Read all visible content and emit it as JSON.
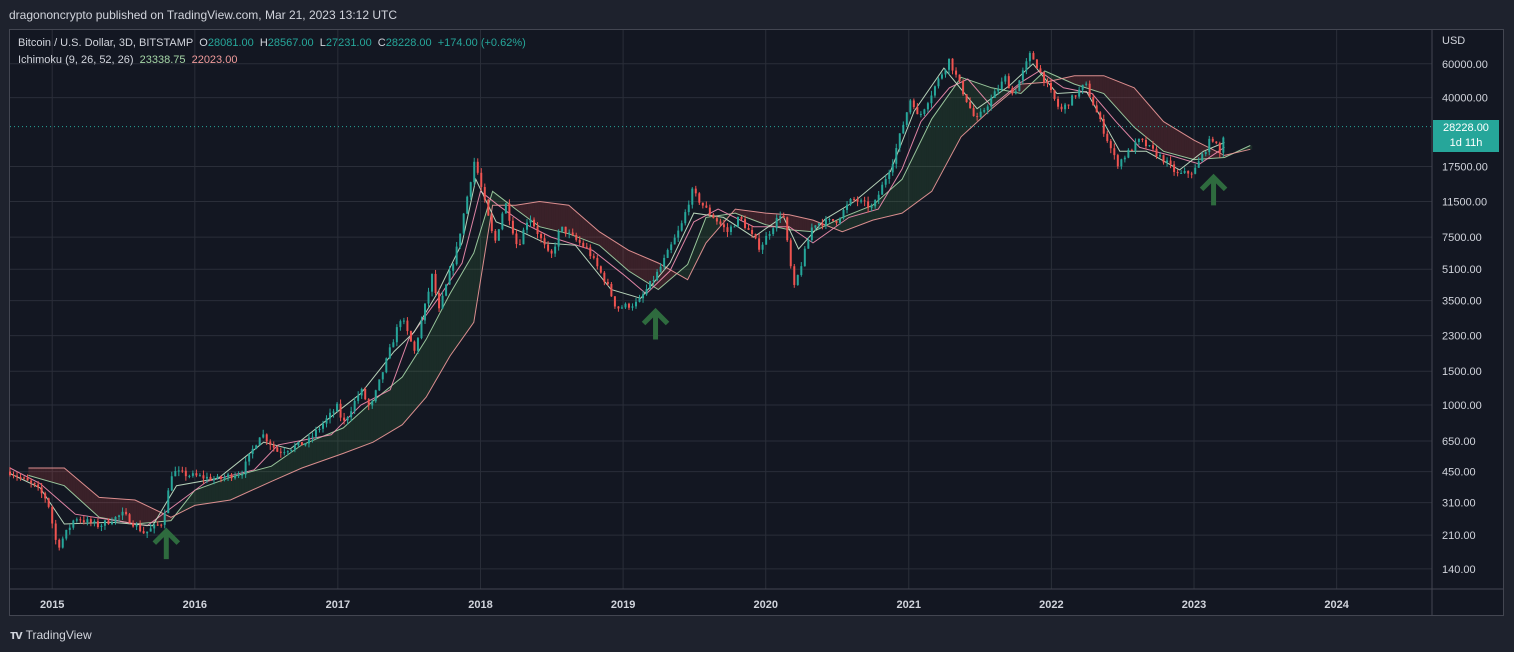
{
  "header": {
    "published": "dragononcrypto published on TradingView.com, Mar 21, 2023 13:12 UTC"
  },
  "legend": {
    "symbol": "Bitcoin / U.S. Dollar, 3D, BITSTAMP",
    "o_label": "O",
    "o": "28081.00",
    "h_label": "H",
    "h": "28567.00",
    "l_label": "L",
    "l": "27231.00",
    "c_label": "C",
    "c": "28228.00",
    "change": "+174.00 (+0.62%)",
    "indicator": "Ichimoku (9, 26, 52, 26)",
    "ind_a": "23338.75",
    "ind_b": "22023.00"
  },
  "price_badge": {
    "price": "28228.00",
    "countdown": "1d 11h"
  },
  "footer": {
    "brand": "TradingView"
  },
  "colors": {
    "up": "#26a69a",
    "down": "#ef5350",
    "span_a": "#a5d6a7",
    "span_b": "#ef9a9a",
    "arrow": "#2e6b3e"
  },
  "chart_data": {
    "type": "candlestick",
    "currency": "USD",
    "scale": "log",
    "ylim": [
      110,
      90000
    ],
    "xlim": [
      "2014-09-15",
      "2024-09-01"
    ],
    "x_ticks": [
      "2015",
      "2016",
      "2017",
      "2018",
      "2019",
      "2020",
      "2021",
      "2022",
      "2023",
      "2024"
    ],
    "y_ticks": [
      60000,
      40000,
      28228,
      17500,
      11500,
      7500,
      5100,
      3500,
      2300,
      1500,
      1000,
      650,
      450,
      310,
      210,
      140
    ],
    "y_tick_labels": [
      "60000.00",
      "40000.00",
      "",
      "17500.00",
      "11500.00",
      "7500.00",
      "5100.00",
      "3500.00",
      "2300.00",
      "1500.00",
      "1000.00",
      "650.00",
      "450.00",
      "310.00",
      "210.00",
      "140.00"
    ],
    "last_price": 28228,
    "price_path": [
      [
        "2014-09-15",
        450
      ],
      [
        "2014-11-15",
        380
      ],
      [
        "2014-12-20",
        320
      ],
      [
        "2015-01-14",
        180
      ],
      [
        "2015-03-01",
        260
      ],
      [
        "2015-05-01",
        235
      ],
      [
        "2015-07-01",
        270
      ],
      [
        "2015-08-25",
        215
      ],
      [
        "2015-10-10",
        245
      ],
      [
        "2015-11-04",
        450
      ],
      [
        "2015-12-20",
        430
      ],
      [
        "2016-03-01",
        410
      ],
      [
        "2016-05-01",
        450
      ],
      [
        "2016-06-18",
        720
      ],
      [
        "2016-08-01",
        570
      ],
      [
        "2016-10-15",
        640
      ],
      [
        "2017-01-03",
        1000
      ],
      [
        "2017-01-12",
        780
      ],
      [
        "2017-03-01",
        1200
      ],
      [
        "2017-03-25",
        950
      ],
      [
        "2017-05-20",
        2100
      ],
      [
        "2017-06-12",
        2900
      ],
      [
        "2017-07-16",
        1900
      ],
      [
        "2017-09-01",
        4900
      ],
      [
        "2017-09-15",
        3000
      ],
      [
        "2017-11-01",
        6500
      ],
      [
        "2017-12-17",
        19000
      ],
      [
        "2018-02-06",
        6900
      ],
      [
        "2018-03-05",
        11500
      ],
      [
        "2018-04-06",
        6600
      ],
      [
        "2018-05-05",
        9800
      ],
      [
        "2018-06-29",
        5800
      ],
      [
        "2018-07-25",
        8400
      ],
      [
        "2018-10-01",
        6500
      ],
      [
        "2018-11-20",
        4300
      ],
      [
        "2018-12-15",
        3200
      ],
      [
        "2019-02-08",
        3400
      ],
      [
        "2019-04-02",
        5000
      ],
      [
        "2019-05-30",
        8600
      ],
      [
        "2019-06-26",
        13000
      ],
      [
        "2019-08-01",
        10500
      ],
      [
        "2019-09-25",
        8000
      ],
      [
        "2019-10-26",
        9500
      ],
      [
        "2019-12-17",
        6600
      ],
      [
        "2020-02-13",
        10400
      ],
      [
        "2020-03-13",
        4000
      ],
      [
        "2020-05-01",
        8800
      ],
      [
        "2020-07-01",
        9200
      ],
      [
        "2020-08-10",
        11900
      ],
      [
        "2020-10-01",
        10600
      ],
      [
        "2020-11-20",
        18500
      ],
      [
        "2021-01-08",
        41000
      ],
      [
        "2021-01-25",
        31000
      ],
      [
        "2021-04-14",
        63000
      ],
      [
        "2021-06-22",
        30000
      ],
      [
        "2021-09-06",
        51000
      ],
      [
        "2021-09-25",
        41000
      ],
      [
        "2021-11-09",
        68000
      ],
      [
        "2022-01-24",
        34000
      ],
      [
        "2022-03-29",
        47000
      ],
      [
        "2022-06-18",
        18000
      ],
      [
        "2022-08-15",
        24000
      ],
      [
        "2022-10-15",
        19000
      ],
      [
        "2022-11-21",
        15800
      ],
      [
        "2023-01-01",
        16500
      ],
      [
        "2023-02-16",
        25000
      ],
      [
        "2023-03-10",
        20000
      ],
      [
        "2023-03-20",
        28228
      ]
    ],
    "kijun": [
      [
        "2014-09-15",
        470
      ],
      [
        "2014-12-01",
        390
      ],
      [
        "2015-03-01",
        270
      ],
      [
        "2015-09-01",
        235
      ],
      [
        "2015-11-20",
        310
      ],
      [
        "2016-02-01",
        400
      ],
      [
        "2016-06-01",
        460
      ],
      [
        "2016-08-01",
        620
      ],
      [
        "2016-12-15",
        700
      ],
      [
        "2017-03-01",
        1000
      ],
      [
        "2017-05-15",
        1200
      ],
      [
        "2017-07-01",
        2200
      ],
      [
        "2017-09-15",
        3600
      ],
      [
        "2017-11-15",
        5500
      ],
      [
        "2018-01-01",
        13000
      ],
      [
        "2018-02-15",
        11000
      ],
      [
        "2018-04-15",
        9000
      ],
      [
        "2018-07-01",
        7500
      ],
      [
        "2018-10-15",
        6400
      ],
      [
        "2019-01-01",
        4800
      ],
      [
        "2019-03-01",
        3800
      ],
      [
        "2019-05-01",
        5000
      ],
      [
        "2019-07-01",
        9000
      ],
      [
        "2019-09-01",
        10500
      ],
      [
        "2019-12-01",
        8500
      ],
      [
        "2020-03-01",
        8500
      ],
      [
        "2020-05-01",
        7000
      ],
      [
        "2020-08-01",
        9500
      ],
      [
        "2020-10-15",
        10500
      ],
      [
        "2020-12-15",
        17000
      ],
      [
        "2021-02-01",
        30000
      ],
      [
        "2021-04-15",
        45000
      ],
      [
        "2021-06-01",
        50000
      ],
      [
        "2021-08-01",
        36000
      ],
      [
        "2021-10-15",
        48000
      ],
      [
        "2021-12-01",
        55000
      ],
      [
        "2022-02-01",
        45000
      ],
      [
        "2022-04-15",
        42000
      ],
      [
        "2022-06-15",
        30000
      ],
      [
        "2022-08-15",
        22000
      ],
      [
        "2022-11-01",
        20000
      ],
      [
        "2023-01-15",
        18000
      ],
      [
        "2023-03-20",
        22023
      ]
    ],
    "tenkan": [
      [
        "2014-09-15",
        440
      ],
      [
        "2014-12-01",
        370
      ],
      [
        "2015-02-01",
        240
      ],
      [
        "2015-06-01",
        245
      ],
      [
        "2015-09-15",
        235
      ],
      [
        "2015-11-15",
        380
      ],
      [
        "2016-03-01",
        415
      ],
      [
        "2016-06-25",
        640
      ],
      [
        "2016-09-01",
        590
      ],
      [
        "2017-01-05",
        940
      ],
      [
        "2017-03-01",
        1150
      ],
      [
        "2017-05-25",
        1900
      ],
      [
        "2017-07-15",
        2400
      ],
      [
        "2017-09-15",
        3900
      ],
      [
        "2017-11-15",
        7000
      ],
      [
        "2017-12-20",
        15000
      ],
      [
        "2018-02-10",
        9000
      ],
      [
        "2018-04-15",
        8000
      ],
      [
        "2018-06-15",
        7000
      ],
      [
        "2018-09-01",
        6800
      ],
      [
        "2018-12-01",
        4000
      ],
      [
        "2019-02-15",
        3600
      ],
      [
        "2019-05-01",
        5500
      ],
      [
        "2019-07-01",
        10000
      ],
      [
        "2019-09-15",
        9500
      ],
      [
        "2019-12-01",
        7500
      ],
      [
        "2020-02-15",
        9600
      ],
      [
        "2020-03-25",
        6500
      ],
      [
        "2020-06-01",
        9300
      ],
      [
        "2020-08-15",
        11500
      ],
      [
        "2020-11-15",
        16500
      ],
      [
        "2021-01-15",
        34000
      ],
      [
        "2021-04-01",
        57000
      ],
      [
        "2021-06-25",
        35000
      ],
      [
        "2021-09-15",
        46000
      ],
      [
        "2021-11-15",
        60000
      ],
      [
        "2022-01-15",
        42000
      ],
      [
        "2022-04-01",
        43000
      ],
      [
        "2022-06-25",
        21000
      ],
      [
        "2022-09-01",
        21000
      ],
      [
        "2022-11-25",
        16800
      ],
      [
        "2023-01-25",
        21000
      ],
      [
        "2023-03-20",
        23338.75
      ]
    ],
    "span_a": [
      [
        "2014-11-01",
        430
      ],
      [
        "2015-02-01",
        380
      ],
      [
        "2015-05-01",
        260
      ],
      [
        "2015-08-01",
        240
      ],
      [
        "2015-11-01",
        250
      ],
      [
        "2016-01-01",
        360
      ],
      [
        "2016-04-01",
        420
      ],
      [
        "2016-07-15",
        480
      ],
      [
        "2016-10-01",
        620
      ],
      [
        "2017-01-15",
        760
      ],
      [
        "2017-04-01",
        1050
      ],
      [
        "2017-06-15",
        1400
      ],
      [
        "2017-08-15",
        2200
      ],
      [
        "2017-10-15",
        3800
      ],
      [
        "2017-12-15",
        6200
      ],
      [
        "2018-02-01",
        13000
      ],
      [
        "2018-04-01",
        10500
      ],
      [
        "2018-06-01",
        8500
      ],
      [
        "2018-08-15",
        7800
      ],
      [
        "2018-11-01",
        6800
      ],
      [
        "2019-01-15",
        5000
      ],
      [
        "2019-04-01",
        4000
      ],
      [
        "2019-06-15",
        5400
      ],
      [
        "2019-08-01",
        9500
      ],
      [
        "2019-10-15",
        10000
      ],
      [
        "2020-01-01",
        8700
      ],
      [
        "2020-03-01",
        8200
      ],
      [
        "2020-05-01",
        8000
      ],
      [
        "2020-07-15",
        9500
      ],
      [
        "2020-10-01",
        11000
      ],
      [
        "2020-12-15",
        15000
      ],
      [
        "2021-03-01",
        31000
      ],
      [
        "2021-05-15",
        51000
      ],
      [
        "2021-08-01",
        45000
      ],
      [
        "2021-10-15",
        42000
      ],
      [
        "2021-12-15",
        55000
      ],
      [
        "2022-03-01",
        47000
      ],
      [
        "2022-05-15",
        42000
      ],
      [
        "2022-08-01",
        28000
      ],
      [
        "2022-10-15",
        21000
      ],
      [
        "2023-01-01",
        19000
      ],
      [
        "2023-03-20",
        19500
      ],
      [
        "2023-05-25",
        22500
      ]
    ],
    "span_b": [
      [
        "2014-11-01",
        470
      ],
      [
        "2015-02-01",
        470
      ],
      [
        "2015-05-01",
        330
      ],
      [
        "2015-08-01",
        320
      ],
      [
        "2015-11-01",
        260
      ],
      [
        "2016-01-01",
        300
      ],
      [
        "2016-04-01",
        320
      ],
      [
        "2016-07-15",
        400
      ],
      [
        "2016-10-01",
        470
      ],
      [
        "2017-01-15",
        560
      ],
      [
        "2017-04-01",
        640
      ],
      [
        "2017-06-15",
        790
      ],
      [
        "2017-08-15",
        1100
      ],
      [
        "2017-10-15",
        1800
      ],
      [
        "2017-12-15",
        2700
      ],
      [
        "2018-02-01",
        11000
      ],
      [
        "2018-04-01",
        11000
      ],
      [
        "2018-06-01",
        11500
      ],
      [
        "2018-08-15",
        11000
      ],
      [
        "2018-11-01",
        8000
      ],
      [
        "2019-01-15",
        6400
      ],
      [
        "2019-04-01",
        5500
      ],
      [
        "2019-06-15",
        4500
      ],
      [
        "2019-08-01",
        7000
      ],
      [
        "2019-10-15",
        10500
      ],
      [
        "2020-01-01",
        10000
      ],
      [
        "2020-03-01",
        9800
      ],
      [
        "2020-05-01",
        9200
      ],
      [
        "2020-07-15",
        8000
      ],
      [
        "2020-10-01",
        9200
      ],
      [
        "2020-12-15",
        10000
      ],
      [
        "2021-03-01",
        13000
      ],
      [
        "2021-05-15",
        25000
      ],
      [
        "2021-08-01",
        35000
      ],
      [
        "2021-10-15",
        47000
      ],
      [
        "2021-12-15",
        48000
      ],
      [
        "2022-03-01",
        52000
      ],
      [
        "2022-05-15",
        52000
      ],
      [
        "2022-08-01",
        45000
      ],
      [
        "2022-10-15",
        30000
      ],
      [
        "2023-01-01",
        24000
      ],
      [
        "2023-03-20",
        20000
      ],
      [
        "2023-05-25",
        21500
      ]
    ],
    "arrows": [
      [
        "2015-10-20",
        215
      ],
      [
        "2019-03-25",
        3000
      ],
      [
        "2023-02-20",
        15000
      ]
    ]
  }
}
